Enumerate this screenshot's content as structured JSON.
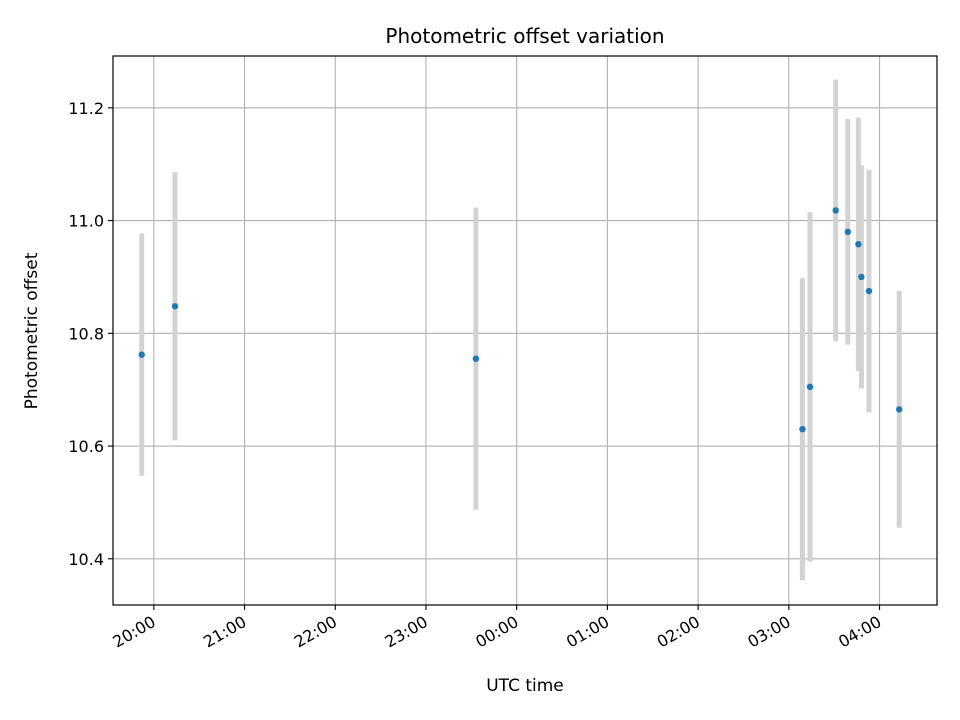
{
  "chart_data": {
    "type": "scatter",
    "title": "Photometric offset variation",
    "xlabel": "UTC time",
    "ylabel": "Photometric offset",
    "x_axis_kind": "time",
    "xlim": [
      "19:33",
      "04:38"
    ],
    "ylim": [
      10.318,
      11.292
    ],
    "x_ticks": [
      "20:00",
      "21:00",
      "22:00",
      "23:00",
      "00:00",
      "01:00",
      "02:00",
      "03:00",
      "04:00"
    ],
    "y_ticks": [
      "10.4",
      "10.6",
      "10.8",
      "11.0",
      "11.2"
    ],
    "grid": true,
    "marker_color": "#1f77b4",
    "errorbar_color": "#d3d3d3",
    "points": [
      {
        "x": "19:52",
        "y": 10.762,
        "yerr": 0.215
      },
      {
        "x": "20:14",
        "y": 10.848,
        "yerr": 0.238
      },
      {
        "x": "23:33",
        "y": 10.755,
        "yerr": 0.268
      },
      {
        "x": "03:09",
        "y": 10.63,
        "yerr": 0.268
      },
      {
        "x": "03:14",
        "y": 10.705,
        "yerr": 0.31
      },
      {
        "x": "03:31",
        "y": 11.018,
        "yerr": 0.232
      },
      {
        "x": "03:39",
        "y": 10.98,
        "yerr": 0.2
      },
      {
        "x": "03:46",
        "y": 10.958,
        "yerr": 0.225
      },
      {
        "x": "03:48",
        "y": 10.9,
        "yerr": 0.198
      },
      {
        "x": "03:53",
        "y": 10.875,
        "yerr": 0.215
      },
      {
        "x": "04:13",
        "y": 10.665,
        "yerr": 0.21
      }
    ]
  }
}
